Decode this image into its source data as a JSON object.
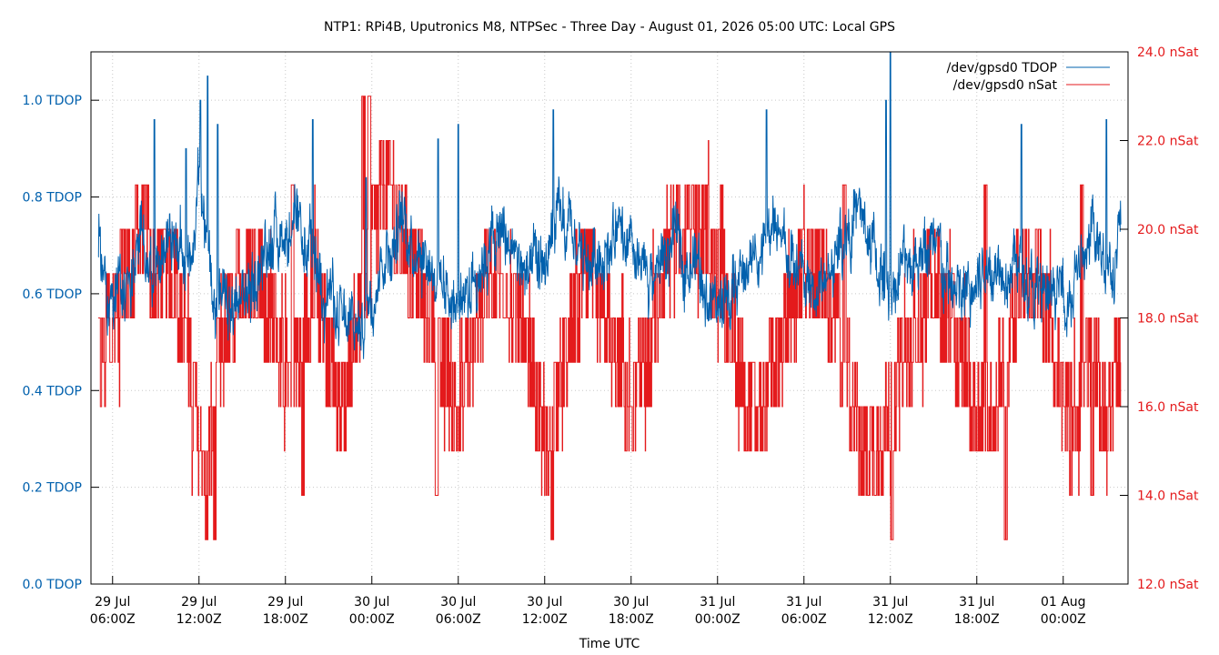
{
  "chart_data": {
    "type": "line",
    "title": "NTP1: RPi4B, Uputronics M8, NTPSec - Three Day - August 01, 2026 05:00 UTC: Local GPS",
    "xlabel": "Time UTC",
    "ylabel_left": "",
    "ylabel_right": "",
    "grid": true,
    "legend_position": "top-right",
    "x_range_hours": [
      -1.5,
      70.5
    ],
    "x_ticks": [
      {
        "hour": 0,
        "line1": "29 Jul",
        "line2": "06:00Z"
      },
      {
        "hour": 6,
        "line1": "29 Jul",
        "line2": "12:00Z"
      },
      {
        "hour": 12,
        "line1": "29 Jul",
        "line2": "18:00Z"
      },
      {
        "hour": 18,
        "line1": "30 Jul",
        "line2": "00:00Z"
      },
      {
        "hour": 24,
        "line1": "30 Jul",
        "line2": "06:00Z"
      },
      {
        "hour": 30,
        "line1": "30 Jul",
        "line2": "12:00Z"
      },
      {
        "hour": 36,
        "line1": "30 Jul",
        "line2": "18:00Z"
      },
      {
        "hour": 42,
        "line1": "31 Jul",
        "line2": "00:00Z"
      },
      {
        "hour": 48,
        "line1": "31 Jul",
        "line2": "06:00Z"
      },
      {
        "hour": 54,
        "line1": "31 Jul",
        "line2": "12:00Z"
      },
      {
        "hour": 60,
        "line1": "31 Jul",
        "line2": "18:00Z"
      },
      {
        "hour": 66,
        "line1": "01 Aug",
        "line2": "00:00Z"
      }
    ],
    "y_left": {
      "min": 0.0,
      "max": 1.1,
      "ticks": [
        {
          "value": 0.0,
          "label": "0.0 TDOP"
        },
        {
          "value": 0.2,
          "label": "0.2 TDOP"
        },
        {
          "value": 0.4,
          "label": "0.4 TDOP"
        },
        {
          "value": 0.6,
          "label": "0.6 TDOP"
        },
        {
          "value": 0.8,
          "label": "0.8 TDOP"
        },
        {
          "value": 1.0,
          "label": "1.0 TDOP"
        }
      ]
    },
    "y_right": {
      "min": 12.0,
      "max": 24.0,
      "ticks": [
        {
          "value": 12,
          "label": "12.0 nSat"
        },
        {
          "value": 14,
          "label": "14.0 nSat"
        },
        {
          "value": 16,
          "label": "16.0 nSat"
        },
        {
          "value": 18,
          "label": "18.0 nSat"
        },
        {
          "value": 20,
          "label": "20.0 nSat"
        },
        {
          "value": 22,
          "label": "22.0 nSat"
        },
        {
          "value": 24,
          "label": "24.0 nSat"
        }
      ]
    },
    "series": [
      {
        "name": "/dev/gpsd0 TDOP",
        "axis": "left",
        "color": "#0060ad",
        "x": [
          -1,
          0,
          1,
          2,
          3,
          4,
          5,
          5.5,
          6,
          6.5,
          7,
          8,
          9,
          10,
          11,
          12,
          13,
          14,
          15,
          16,
          17,
          18,
          19,
          20,
          21,
          22,
          23,
          24,
          25,
          26,
          27,
          28,
          29,
          30,
          31,
          32,
          33,
          34,
          35,
          36,
          37,
          38,
          39,
          40,
          41,
          42,
          43,
          44,
          45,
          46,
          47,
          48,
          49,
          50,
          51,
          52,
          53,
          54,
          55,
          56,
          57,
          58,
          59,
          60,
          61,
          62,
          63,
          64,
          65,
          66,
          67,
          68,
          69,
          70
        ],
        "values": [
          0.68,
          0.58,
          0.62,
          0.7,
          0.66,
          0.74,
          0.66,
          0.7,
          0.82,
          0.72,
          0.62,
          0.54,
          0.58,
          0.64,
          0.72,
          0.74,
          0.7,
          0.66,
          0.62,
          0.52,
          0.52,
          0.62,
          0.7,
          0.74,
          0.72,
          0.68,
          0.62,
          0.58,
          0.64,
          0.7,
          0.72,
          0.68,
          0.62,
          0.66,
          0.74,
          0.7,
          0.66,
          0.7,
          0.72,
          0.66,
          0.62,
          0.66,
          0.7,
          0.68,
          0.64,
          0.56,
          0.6,
          0.66,
          0.7,
          0.72,
          0.68,
          0.62,
          0.6,
          0.66,
          0.74,
          0.76,
          0.66,
          0.62,
          0.66,
          0.7,
          0.68,
          0.62,
          0.58,
          0.62,
          0.66,
          0.68,
          0.66,
          0.6,
          0.58,
          0.6,
          0.64,
          0.7,
          0.68,
          0.7
        ],
        "spikes": [
          {
            "x": 2.9,
            "value": 0.96
          },
          {
            "x": 5.1,
            "value": 0.9
          },
          {
            "x": 6.1,
            "value": 1.0
          },
          {
            "x": 6.6,
            "value": 1.05
          },
          {
            "x": 7.3,
            "value": 0.95
          },
          {
            "x": 13.9,
            "value": 0.96
          },
          {
            "x": 17.6,
            "value": 0.84
          },
          {
            "x": 22.6,
            "value": 0.92
          },
          {
            "x": 24.0,
            "value": 0.95
          },
          {
            "x": 30.6,
            "value": 0.98
          },
          {
            "x": 45.4,
            "value": 0.98
          },
          {
            "x": 54.0,
            "value": 1.1
          },
          {
            "x": 53.7,
            "value": 1.0
          },
          {
            "x": 63.1,
            "value": 0.95
          },
          {
            "x": 69.0,
            "value": 0.96
          }
        ]
      },
      {
        "name": "/dev/gpsd0 nSat",
        "axis": "right",
        "color": "#e41a1c",
        "levels": [
          16,
          17,
          18,
          19,
          20,
          21,
          22,
          23
        ],
        "x": [
          -1,
          0,
          1,
          2,
          3,
          4,
          5,
          6,
          6.5,
          7,
          8,
          9,
          10,
          11,
          12,
          13,
          14,
          15,
          16,
          17,
          18,
          19,
          20,
          21,
          22,
          23,
          24,
          25,
          26,
          27,
          28,
          29,
          30,
          31,
          32,
          33,
          34,
          35,
          36,
          37,
          38,
          39,
          40,
          41,
          42,
          43,
          44,
          45,
          46,
          47,
          48,
          49,
          50,
          51,
          52,
          53,
          54,
          55,
          56,
          57,
          58,
          59,
          60,
          61,
          62,
          63,
          64,
          65,
          66,
          67,
          68,
          69,
          70
        ],
        "values": [
          17,
          18,
          19,
          20,
          19,
          19,
          18,
          15,
          14,
          16,
          18,
          19,
          19,
          18,
          17,
          17,
          19,
          17,
          16,
          18,
          20,
          21,
          20,
          19,
          18,
          17,
          16,
          17,
          19,
          19,
          18,
          17,
          15,
          16,
          18,
          19,
          18,
          17,
          16,
          17,
          18,
          20,
          20,
          20,
          19,
          18,
          16,
          16,
          17,
          18,
          19,
          19,
          18,
          17,
          15,
          15,
          16,
          17,
          18,
          19,
          18,
          17,
          16,
          16,
          17,
          19,
          19,
          18,
          16,
          16,
          17,
          16,
          17
        ],
        "dropouts": [
          {
            "x": 6.5,
            "value": 13
          },
          {
            "x": 7.1,
            "value": 13
          },
          {
            "x": 13.2,
            "value": 14
          },
          {
            "x": 22.5,
            "value": 14
          },
          {
            "x": 30.5,
            "value": 13
          },
          {
            "x": 54.1,
            "value": 13
          },
          {
            "x": 62.0,
            "value": 13
          },
          {
            "x": 66.5,
            "value": 14
          },
          {
            "x": 68.0,
            "value": 14
          }
        ],
        "peaks": [
          {
            "x": 17.4,
            "value": 23
          },
          {
            "x": 17.8,
            "value": 23
          },
          {
            "x": 2.4,
            "value": 21
          },
          {
            "x": 12.5,
            "value": 21
          },
          {
            "x": 42.3,
            "value": 21
          },
          {
            "x": 50.8,
            "value": 21
          },
          {
            "x": 60.6,
            "value": 21
          },
          {
            "x": 67.3,
            "value": 21
          }
        ]
      }
    ]
  }
}
